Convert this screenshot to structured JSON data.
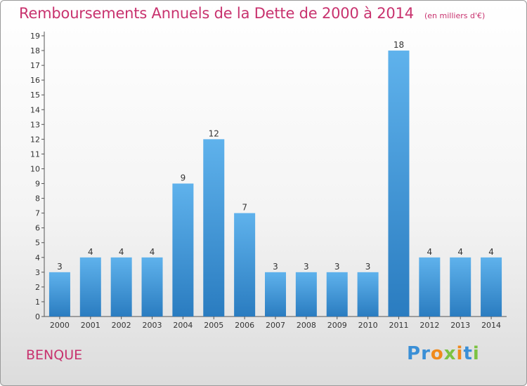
{
  "title": "Remboursements Annuels de la Dette de 2000 à 2014",
  "unit": "(en milliers d'€)",
  "place": "BENQUE",
  "brand": {
    "letters": [
      "P",
      "r",
      "o",
      "x",
      "i",
      "t",
      "i"
    ],
    "colors": [
      "#3a8fd6",
      "#3a8fd6",
      "#f08a1c",
      "#7cc242",
      "#f08a1c",
      "#3a8fd6",
      "#7cc242"
    ]
  },
  "colors": {
    "title": "#c8326e",
    "bar_top": "#5fb2ec",
    "bar_bottom": "#2a7cc0"
  },
  "chart_data": {
    "type": "bar",
    "categories": [
      "2000",
      "2001",
      "2002",
      "2003",
      "2004",
      "2005",
      "2006",
      "2007",
      "2008",
      "2009",
      "2010",
      "2011",
      "2012",
      "2013",
      "2014"
    ],
    "values": [
      3,
      4,
      4,
      4,
      9,
      12,
      7,
      3,
      3,
      3,
      3,
      18,
      4,
      4,
      4
    ],
    "ylim": [
      0,
      19
    ],
    "yticks": [
      "0",
      "1",
      "2",
      "3",
      "4",
      "5",
      "6",
      "7",
      "8",
      "9",
      "10",
      "11",
      "12",
      "13",
      "14",
      "15",
      "16",
      "17",
      "18",
      "19"
    ],
    "grid": false,
    "data_labels": true
  }
}
